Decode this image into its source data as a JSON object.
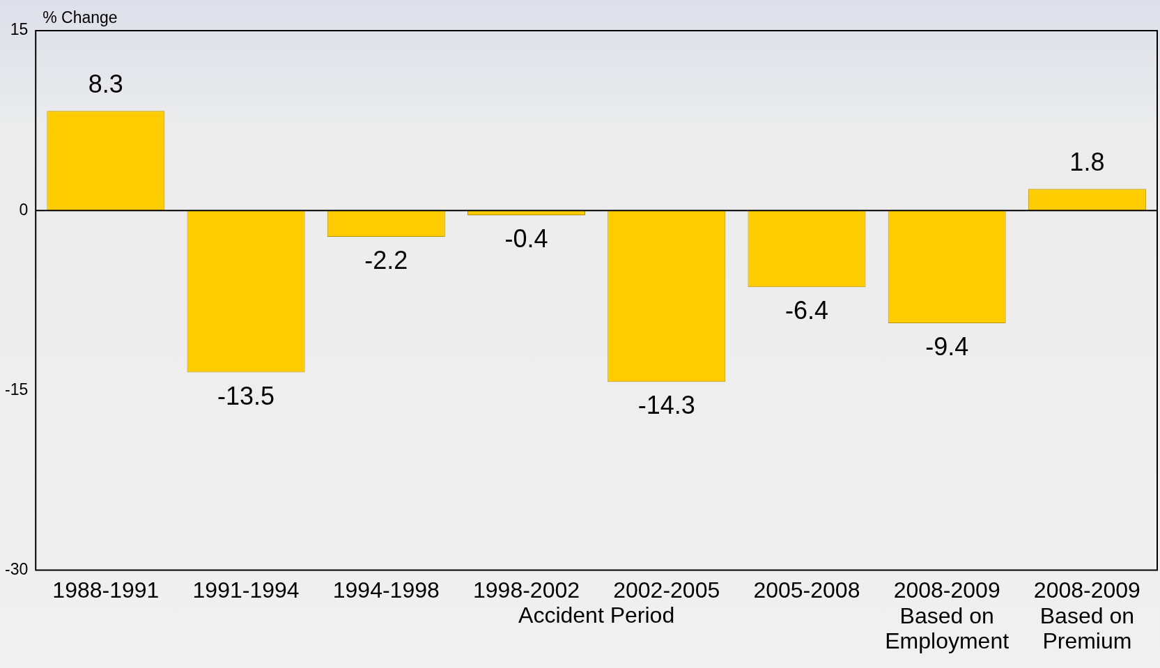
{
  "chart_data": {
    "type": "bar",
    "xlabel": "Accident Period",
    "ylabel": "% Change",
    "categories": [
      "1988-1991",
      "1991-1994",
      "1994-1998",
      "1998-2002",
      "2002-2005",
      "2005-2008",
      "2008-2009\nBased on\nEmployment",
      "2008-2009\nBased on\nPremium"
    ],
    "values": [
      8.3,
      -13.5,
      -2.2,
      -0.4,
      -14.3,
      -6.4,
      -9.4,
      1.8
    ],
    "color": "#ffcc00",
    "ylim": [
      -30,
      15
    ],
    "yticks": [
      15,
      0,
      -15,
      -30
    ],
    "grid": false,
    "ref_lines": [
      {
        "axis": "y",
        "value": 0,
        "color": "#000000"
      }
    ],
    "legend": false,
    "data_labels": true
  }
}
